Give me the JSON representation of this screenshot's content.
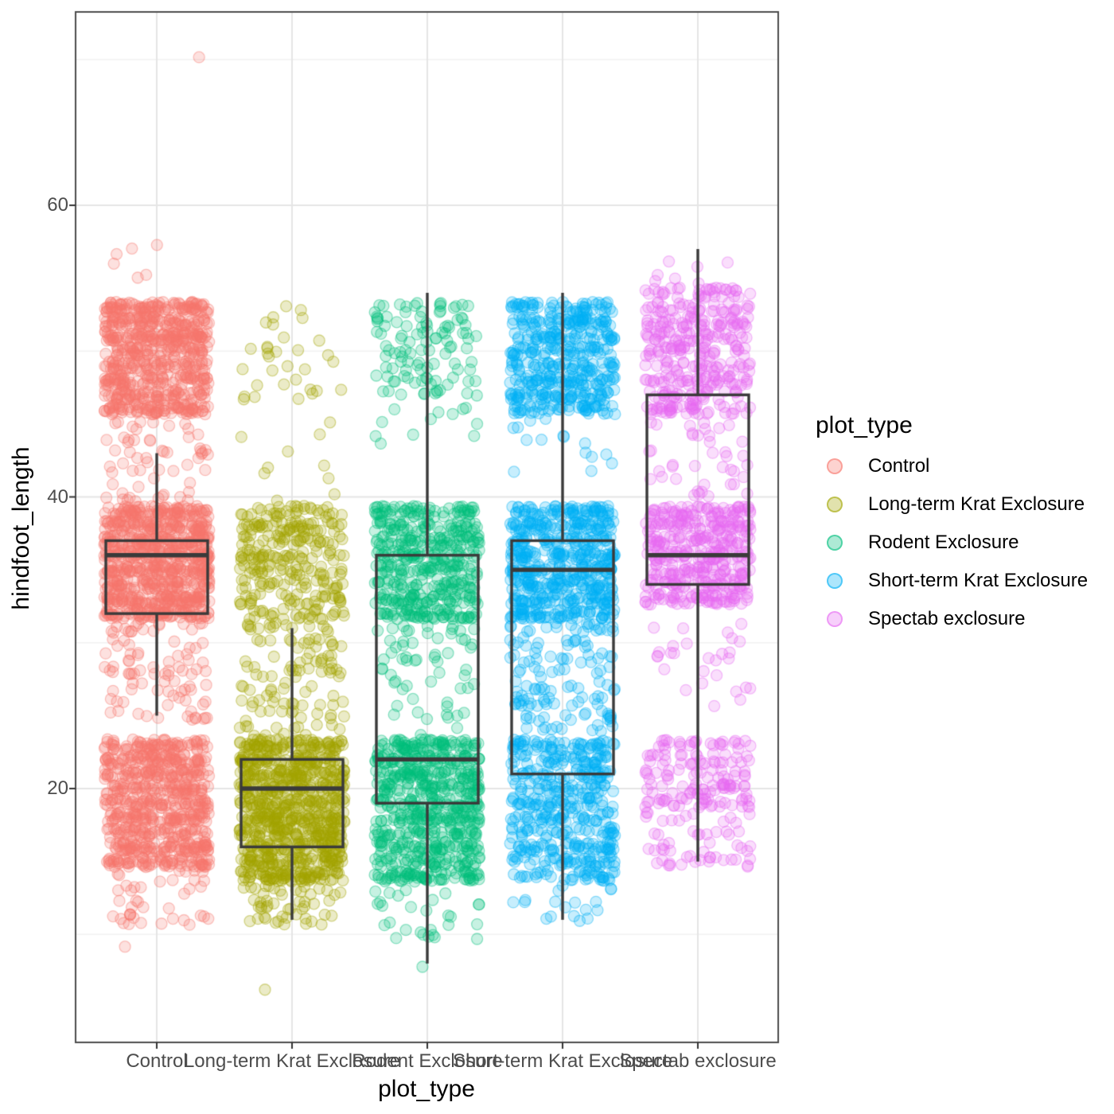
{
  "figure": {
    "y_axis": {
      "title": "hindfoot_length",
      "ticks": [
        20,
        40,
        60
      ],
      "minor_ticks": [
        10,
        30,
        50,
        70
      ]
    },
    "x_axis": {
      "title": "plot_type",
      "categories": [
        "Control",
        "Long-term Krat Exclosure",
        "Rodent Exclosure",
        "Short-term Krat Exclosure",
        "Spectab exclosure"
      ]
    },
    "legend": {
      "title": "plot_type",
      "entries": [
        {
          "label": "Control",
          "color": "#F8766D"
        },
        {
          "label": "Long-term Krat Exclosure",
          "color": "#A3A500"
        },
        {
          "label": "Rodent Exclosure",
          "color": "#00BF7D"
        },
        {
          "label": "Short-term Krat Exclosure",
          "color": "#00B0F6"
        },
        {
          "label": "Spectab exclosure",
          "color": "#E76BF3"
        }
      ]
    }
  },
  "chart_data": {
    "type": "boxplot+jitter",
    "xlabel": "plot_type",
    "ylabel": "hindfoot_length",
    "y_ticks": [
      20,
      40,
      60
    ],
    "y_range_shown": [
      2.5,
      73
    ],
    "grid": "on",
    "legend_position": "right",
    "point_alpha": 0.3,
    "groups": [
      {
        "label": "Control",
        "color": "#F8766D",
        "box": {
          "whisker_low": 25,
          "q1": 32,
          "median": 36,
          "q3": 37,
          "whisker_high": 43
        },
        "jitter_bands": [
          [
            70,
            70,
            1
          ],
          [
            55,
            57,
            6
          ],
          [
            46,
            53,
            680
          ],
          [
            44,
            45,
            18
          ],
          [
            40,
            43,
            40
          ],
          [
            32,
            39,
            820
          ],
          [
            25,
            31,
            90
          ],
          [
            15,
            23,
            700
          ],
          [
            11,
            14,
            40
          ],
          [
            9,
            9,
            1
          ]
        ]
      },
      {
        "label": "Long-term Krat Exclosure",
        "color": "#A3A500",
        "box": {
          "whisker_low": 11,
          "q1": 16,
          "median": 20,
          "q3": 22,
          "whisker_high": 31
        },
        "jitter_bands": [
          [
            47,
            53,
            32
          ],
          [
            40,
            46,
            10
          ],
          [
            32,
            39,
            280
          ],
          [
            24,
            31,
            110
          ],
          [
            14,
            23,
            850
          ],
          [
            11,
            13,
            50
          ],
          [
            6,
            6,
            1
          ]
        ]
      },
      {
        "label": "Rodent Exclosure",
        "color": "#00BF7D",
        "box": {
          "whisker_low": 8,
          "q1": 19,
          "median": 22,
          "q3": 36,
          "whisker_high": 54
        },
        "jitter_bands": [
          [
            47,
            53,
            110
          ],
          [
            44,
            46,
            12
          ],
          [
            32,
            39,
            450
          ],
          [
            24,
            31,
            60
          ],
          [
            14,
            23,
            650
          ],
          [
            10,
            13,
            28
          ],
          [
            8,
            8,
            1
          ]
        ]
      },
      {
        "label": "Short-term Krat Exclosure",
        "color": "#00B0F6",
        "box": {
          "whisker_low": 11,
          "q1": 21,
          "median": 35,
          "q3": 37,
          "whisker_high": 54
        },
        "jitter_bands": [
          [
            46,
            53,
            460
          ],
          [
            40,
            45,
            15
          ],
          [
            32,
            39,
            560
          ],
          [
            24,
            31,
            130
          ],
          [
            14,
            23,
            460
          ],
          [
            11,
            13,
            18
          ]
        ]
      },
      {
        "label": "Spectab exclosure",
        "color": "#E76BF3",
        "box": {
          "whisker_low": 15,
          "q1": 34,
          "median": 36,
          "q3": 47,
          "whisker_high": 57
        },
        "jitter_bands": [
          [
            55,
            57,
            7
          ],
          [
            46,
            54,
            360
          ],
          [
            40,
            45,
            40
          ],
          [
            33,
            39,
            420
          ],
          [
            26,
            31,
            28
          ],
          [
            19,
            23,
            150
          ],
          [
            15,
            18,
            55
          ]
        ]
      }
    ]
  }
}
